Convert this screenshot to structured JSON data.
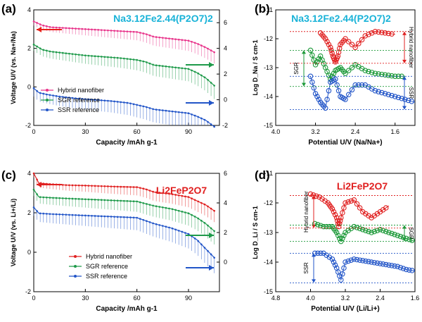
{
  "chart_data": [
    {
      "panel": "(a)",
      "type": "line",
      "title": "Na3.12Fe2.44(P2O7)2",
      "xlabel": "Capacity /mAh g-1",
      "ylabel": "Voltage U/V (vs. Na+/Na)",
      "xlim": [
        0,
        108
      ],
      "ylim": [
        -2,
        4
      ],
      "right_ylim": [
        -2,
        7
      ],
      "xticks": [
        0,
        30,
        60,
        90
      ],
      "yticks": [
        -2,
        0,
        2,
        4
      ],
      "right_yticks": [
        -2,
        0,
        2,
        4,
        6
      ],
      "legend_position": "bottom-left",
      "series": [
        {
          "name": "Hybrid nanofiber",
          "color": "#e8338a",
          "axis": "left",
          "x": [
            0,
            5,
            10,
            20,
            30,
            40,
            50,
            60,
            65,
            70,
            80,
            90,
            95,
            100,
            105
          ],
          "y": [
            3.4,
            3.2,
            3.1,
            3.05,
            3.0,
            2.95,
            2.9,
            2.85,
            2.75,
            2.6,
            2.5,
            2.4,
            2.25,
            2.05,
            1.8
          ]
        },
        {
          "name": "SGR reference",
          "color": "#1e9a4a",
          "axis": "right",
          "x": [
            0,
            5,
            10,
            20,
            30,
            40,
            50,
            60,
            65,
            70,
            80,
            90,
            95,
            100,
            105
          ],
          "y": [
            4.3,
            3.9,
            3.75,
            3.6,
            3.45,
            3.35,
            3.25,
            3.1,
            2.95,
            2.7,
            2.55,
            2.4,
            2.1,
            1.7,
            1.1
          ]
        },
        {
          "name": "SSR reference",
          "color": "#2255c8",
          "axis": "right",
          "x": [
            0,
            3,
            8,
            15,
            25,
            35,
            45,
            55,
            60,
            65,
            70,
            80,
            90,
            95,
            100,
            105
          ],
          "y": [
            0.9,
            0.55,
            0.4,
            0.25,
            0.1,
            0.0,
            -0.1,
            -0.25,
            -0.4,
            -0.55,
            -0.75,
            -0.9,
            -1.05,
            -1.3,
            -1.6,
            -2.1
          ]
        }
      ],
      "annotations": [
        {
          "arrow": "left",
          "color": "#e8201a",
          "target_axis": "left"
        },
        {
          "arrow": "right",
          "color": "#1e9a4a",
          "target_axis": "right"
        },
        {
          "arrow": "right",
          "color": "#2255c8",
          "target_axis": "right"
        }
      ]
    },
    {
      "panel": "(b)",
      "type": "line",
      "title": "Na3.12Fe2.44(P2O7)2",
      "xlabel": "Potential U/V (Na/Na+)",
      "ylabel": "Log D_Na / S cm-1",
      "xlim": [
        4.0,
        1.2
      ],
      "ylim": [
        -15,
        -11
      ],
      "xticks": [
        4.0,
        3.2,
        2.4,
        1.6
      ],
      "yticks": [
        -15,
        -14,
        -13,
        -12,
        -11
      ],
      "series": [
        {
          "name": "Hybrid nanofiber",
          "color": "#e02020",
          "x": [
            3.1,
            3.0,
            2.9,
            2.85,
            2.8,
            2.75,
            2.7,
            2.6,
            2.4,
            2.2,
            2.0,
            1.8,
            1.6
          ],
          "y": [
            -11.8,
            -12.0,
            -12.3,
            -12.6,
            -12.8,
            -12.6,
            -12.2,
            -12.0,
            -12.3,
            -11.9,
            -11.75,
            -11.8,
            -11.85
          ]
        },
        {
          "name": "SGR reference",
          "color": "#1e9a3a",
          "x": [
            3.3,
            3.2,
            3.1,
            3.0,
            2.9,
            2.8,
            2.7,
            2.6,
            2.4,
            2.2,
            2.0,
            1.8,
            1.6,
            1.4
          ],
          "y": [
            -12.4,
            -12.9,
            -12.6,
            -13.0,
            -13.4,
            -13.1,
            -13.0,
            -13.2,
            -12.9,
            -13.1,
            -13.2,
            -13.25,
            -13.3,
            -13.3
          ]
        },
        {
          "name": "SSR reference",
          "color": "#2255c8",
          "x": [
            3.3,
            3.2,
            3.1,
            3.0,
            2.9,
            2.8,
            2.7,
            2.6,
            2.4,
            2.2,
            2.0,
            1.8,
            1.6,
            1.4,
            1.2
          ],
          "y": [
            -13.3,
            -13.9,
            -14.2,
            -14.4,
            -13.5,
            -13.4,
            -14.0,
            -14.1,
            -13.6,
            -13.6,
            -13.8,
            -13.9,
            -14.0,
            -14.1,
            -14.2
          ]
        }
      ],
      "annotations": [
        "Hybrid nanofiber",
        "SGR",
        "SSR"
      ]
    },
    {
      "panel": "(c)",
      "type": "line",
      "title": "Li2FeP2O7",
      "xlabel": "Capacity /mAh g-1",
      "ylabel": "Voltage U/V (vs. Li+/Li)",
      "xlim": [
        0,
        108
      ],
      "ylim": [
        -2,
        4
      ],
      "right_ylim": [
        -2,
        6
      ],
      "xticks": [
        0,
        30,
        60,
        90
      ],
      "yticks": [
        -2,
        0,
        2,
        4
      ],
      "right_yticks": [
        0,
        2,
        4,
        6
      ],
      "legend_position": "bottom-center",
      "series": [
        {
          "name": "Hybrid nanofiber",
          "color": "#e02020",
          "axis": "left",
          "x": [
            0,
            3,
            10,
            20,
            30,
            40,
            50,
            60,
            65,
            70,
            80,
            90,
            95,
            100,
            105
          ],
          "y": [
            4.0,
            3.5,
            3.45,
            3.4,
            3.38,
            3.35,
            3.32,
            3.3,
            3.2,
            3.05,
            2.95,
            2.8,
            2.6,
            2.4,
            2.1
          ]
        },
        {
          "name": "SGR reference",
          "color": "#1e9a4a",
          "axis": "right",
          "x": [
            0,
            3,
            10,
            20,
            30,
            40,
            50,
            60,
            65,
            70,
            80,
            90,
            95,
            100,
            105
          ],
          "y": [
            4.9,
            4.4,
            4.35,
            4.3,
            4.25,
            4.2,
            4.15,
            4.1,
            3.95,
            3.8,
            3.6,
            3.3,
            3.0,
            2.6,
            2.1
          ]
        },
        {
          "name": "SSR reference",
          "color": "#2255c8",
          "axis": "right",
          "x": [
            0,
            3,
            10,
            20,
            30,
            40,
            50,
            60,
            65,
            70,
            80,
            90,
            95,
            100,
            105
          ],
          "y": [
            3.7,
            3.3,
            3.25,
            3.2,
            3.15,
            3.1,
            3.05,
            3.0,
            2.8,
            2.6,
            2.3,
            1.9,
            1.5,
            0.9,
            0.3
          ]
        }
      ],
      "annotations": [
        {
          "arrow": "left",
          "color": "#e02020",
          "target_axis": "left"
        },
        {
          "arrow": "right",
          "color": "#1e9a4a",
          "target_axis": "right"
        },
        {
          "arrow": "right",
          "color": "#2255c8",
          "target_axis": "right"
        }
      ]
    },
    {
      "panel": "(d)",
      "type": "line",
      "title": "Li2FeP2O7",
      "xlabel": "Potential U/V (Li/Li+)",
      "ylabel": "Log D_Li / S cm-1",
      "xlim": [
        4.8,
        1.6
      ],
      "ylim": [
        -15,
        -11
      ],
      "xticks": [
        4.8,
        4.0,
        3.2,
        2.4,
        1.6
      ],
      "yticks": [
        -15,
        -14,
        -13,
        -12,
        -11
      ],
      "series": [
        {
          "name": "Hybrid nanofiber",
          "color": "#e02020",
          "x": [
            4.0,
            3.8,
            3.6,
            3.5,
            3.4,
            3.35,
            3.3,
            3.2,
            3.0,
            2.8,
            2.6,
            2.4,
            2.2
          ],
          "y": [
            -11.7,
            -11.8,
            -12.0,
            -12.2,
            -12.5,
            -12.8,
            -12.5,
            -12.0,
            -11.9,
            -12.3,
            -12.5,
            -12.3,
            -12.1
          ]
        },
        {
          "name": "SGR reference",
          "color": "#1e9a3a",
          "x": [
            3.9,
            3.7,
            3.5,
            3.4,
            3.3,
            3.2,
            3.0,
            2.8,
            2.6,
            2.4,
            2.2,
            2.0,
            1.8,
            1.6
          ],
          "y": [
            -12.7,
            -12.8,
            -12.8,
            -13.0,
            -13.3,
            -13.0,
            -12.8,
            -12.9,
            -13.0,
            -12.9,
            -13.0,
            -13.1,
            -13.2,
            -13.3
          ]
        },
        {
          "name": "SSR reference",
          "color": "#2255c8",
          "x": [
            3.9,
            3.7,
            3.5,
            3.4,
            3.3,
            3.2,
            3.0,
            2.8,
            2.6,
            2.4,
            2.2,
            2.0,
            1.8,
            1.6
          ],
          "y": [
            -13.7,
            -13.7,
            -13.9,
            -14.2,
            -14.6,
            -14.0,
            -13.9,
            -13.95,
            -14.0,
            -14.05,
            -14.1,
            -14.15,
            -14.25,
            -14.3
          ]
        }
      ],
      "annotations": [
        "Hybrid nanofiber",
        "SGR",
        "SSR"
      ]
    }
  ]
}
